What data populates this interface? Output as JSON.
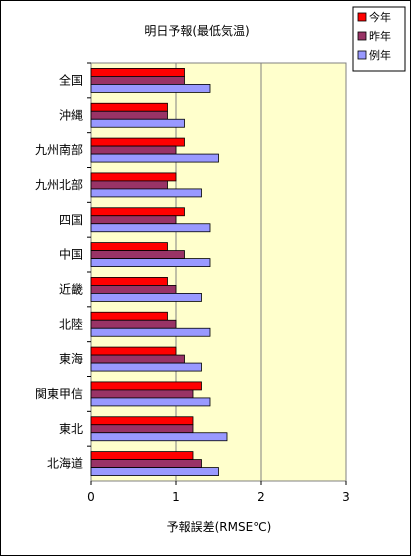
{
  "chart_data": {
    "type": "bar",
    "orientation": "horizontal",
    "title": "明日予報(最低気温)",
    "xlabel": "予報誤差(RMSE℃)",
    "ylabel": "",
    "xlim": [
      0,
      3
    ],
    "x_ticks": [
      "0",
      "1",
      "2",
      "3"
    ],
    "grid": "vertical major gridlines",
    "legend_position": "top-right",
    "categories": [
      "全国",
      "沖縄",
      "九州南部",
      "九州北部",
      "四国",
      "中国",
      "近畿",
      "北陸",
      "東海",
      "関東甲信",
      "東北",
      "北海道"
    ],
    "series": [
      {
        "name": "今年",
        "color": "#FF0000",
        "values": [
          1.1,
          0.9,
          1.1,
          1.0,
          1.1,
          0.9,
          0.9,
          0.9,
          1.0,
          1.3,
          1.2,
          1.2
        ]
      },
      {
        "name": "昨年",
        "color": "#993366",
        "values": [
          1.1,
          0.9,
          1.0,
          0.9,
          1.0,
          1.1,
          1.0,
          1.0,
          1.1,
          1.2,
          1.2,
          1.3
        ]
      },
      {
        "name": "例年",
        "color": "#9999FF",
        "values": [
          1.4,
          1.1,
          1.5,
          1.3,
          1.4,
          1.4,
          1.3,
          1.4,
          1.3,
          1.4,
          1.6,
          1.5
        ]
      }
    ],
    "plot_background": "#FFFFCC"
  }
}
